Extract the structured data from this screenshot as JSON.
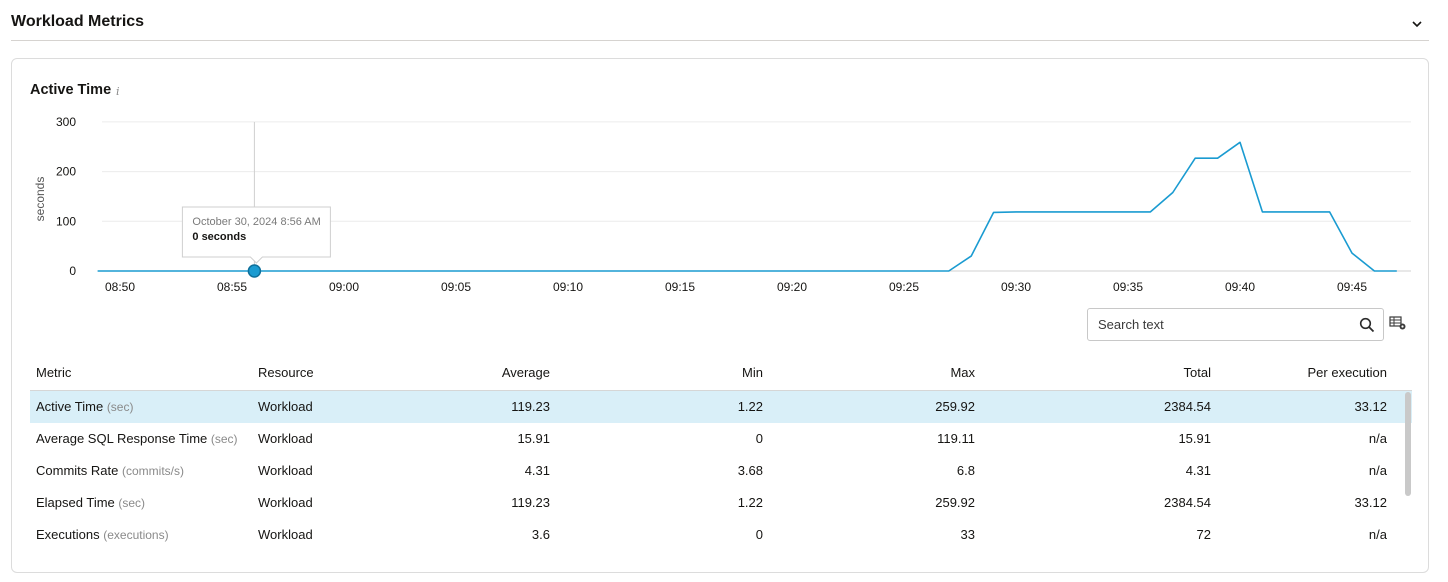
{
  "section": {
    "title": "Workload Metrics"
  },
  "chart": {
    "title": "Active Time",
    "info_icon": "info-icon"
  },
  "chart_data": {
    "type": "line",
    "title": "Active Time",
    "ylabel": "seconds",
    "xlabel": "",
    "ylim": [
      0,
      300
    ],
    "yticks": [
      "0",
      "100",
      "200",
      "300"
    ],
    "xticks": [
      "08:50",
      "08:55",
      "09:00",
      "09:05",
      "09:10",
      "09:15",
      "09:20",
      "09:25",
      "09:30",
      "09:35",
      "09:40",
      "09:45"
    ],
    "xstart": "08:50",
    "grid": true,
    "series": [
      {
        "color": "#1a9bd1",
        "x": [
          "08:49",
          "08:50",
          "08:51",
          "08:52",
          "08:53",
          "08:54",
          "08:55",
          "08:56",
          "08:57",
          "08:58",
          "08:59",
          "09:00",
          "09:01",
          "09:02",
          "09:03",
          "09:04",
          "09:05",
          "09:06",
          "09:07",
          "09:08",
          "09:09",
          "09:10",
          "09:11",
          "09:12",
          "09:13",
          "09:14",
          "09:15",
          "09:16",
          "09:17",
          "09:18",
          "09:19",
          "09:20",
          "09:21",
          "09:22",
          "09:23",
          "09:24",
          "09:25",
          "09:26",
          "09:27",
          "09:28",
          "09:29",
          "09:30",
          "09:31",
          "09:32",
          "09:33",
          "09:34",
          "09:35",
          "09:36",
          "09:37",
          "09:38",
          "09:39",
          "09:40",
          "09:41",
          "09:42",
          "09:43",
          "09:44",
          "09:45",
          "09:46",
          "09:47"
        ],
        "values": [
          0,
          0,
          0,
          0,
          0,
          0,
          0,
          0,
          0,
          0,
          0,
          0,
          0,
          0,
          0,
          0,
          0,
          0,
          0,
          0,
          0,
          0,
          0,
          0,
          0,
          0,
          0,
          0,
          0,
          0,
          0,
          0,
          0,
          0,
          0,
          0,
          0,
          0,
          0,
          30,
          118,
          119,
          119,
          119,
          119,
          119,
          119,
          119,
          158,
          227,
          227,
          259,
          119,
          119,
          119,
          119,
          36,
          0,
          0
        ]
      }
    ],
    "tooltip": {
      "date": "October 30, 2024 8:56 AM",
      "value_text": "0 seconds",
      "x": "08:56",
      "y": 0
    }
  },
  "search": {
    "placeholder": "Search text"
  },
  "table": {
    "headers": {
      "metric": "Metric",
      "resource": "Resource",
      "average": "Average",
      "min": "Min",
      "max": "Max",
      "total": "Total",
      "per_execution": "Per execution"
    },
    "rows": [
      {
        "metric": "Active Time",
        "unit": "(sec)",
        "resource": "Workload",
        "average": "119.23",
        "min": "1.22",
        "max": "259.92",
        "total": "2384.54",
        "per_execution": "33.12"
      },
      {
        "metric": "Average SQL Response Time",
        "unit": "(sec)",
        "resource": "Workload",
        "average": "15.91",
        "min": "0",
        "max": "119.11",
        "total": "15.91",
        "per_execution": "n/a"
      },
      {
        "metric": "Commits Rate",
        "unit": "(commits/s)",
        "resource": "Workload",
        "average": "4.31",
        "min": "3.68",
        "max": "6.8",
        "total": "4.31",
        "per_execution": "n/a"
      },
      {
        "metric": "Elapsed Time",
        "unit": "(sec)",
        "resource": "Workload",
        "average": "119.23",
        "min": "1.22",
        "max": "259.92",
        "total": "2384.54",
        "per_execution": "33.12"
      },
      {
        "metric": "Executions",
        "unit": "(executions)",
        "resource": "Workload",
        "average": "3.6",
        "min": "0",
        "max": "33",
        "total": "72",
        "per_execution": "n/a"
      }
    ]
  }
}
